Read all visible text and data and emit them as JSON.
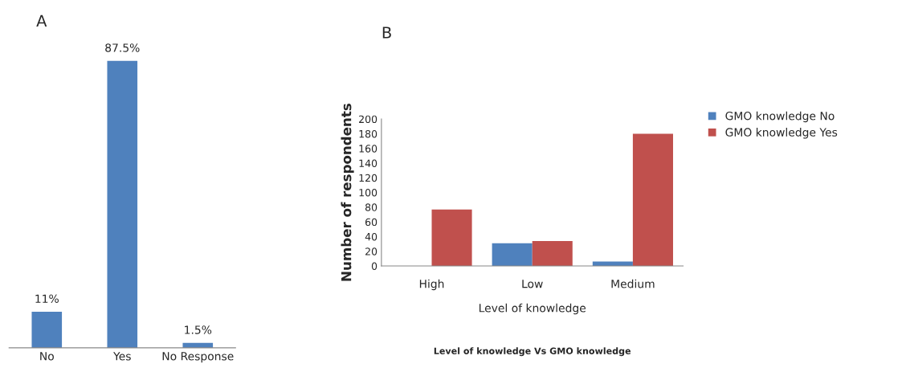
{
  "chart_data": [
    {
      "type": "bar",
      "title": "A",
      "categories": [
        "No",
        "Yes",
        "No Response"
      ],
      "values": [
        11,
        87.5,
        1.5
      ],
      "color": "#4f81bd",
      "data_labels": true,
      "value_labels": [
        "11%",
        "87.5%",
        "1.5%"
      ],
      "tick_labels": "x",
      "grid": false,
      "legend": false
    },
    {
      "type": "bar",
      "title": "B",
      "categories": [
        "High",
        "Low",
        "Medium"
      ],
      "xlabel": "Level of knowledge",
      "ylabel": "Number of respondents",
      "series": [
        {
          "name": "GMO knowledge No",
          "color": "#4f81bd",
          "values": [
            null,
            31,
            6
          ]
        },
        {
          "name": "GMO knowledge Yes",
          "color": "#c0504d",
          "values": [
            77,
            34,
            180
          ]
        }
      ],
      "ylim": [
        0,
        200
      ],
      "yticks": [
        0,
        20,
        40,
        60,
        80,
        100,
        120,
        140,
        160,
        180,
        200
      ],
      "grid": false,
      "legend": "top right",
      "annotations": [
        "Level of knowledge Vs GMO knowledge"
      ]
    }
  ]
}
